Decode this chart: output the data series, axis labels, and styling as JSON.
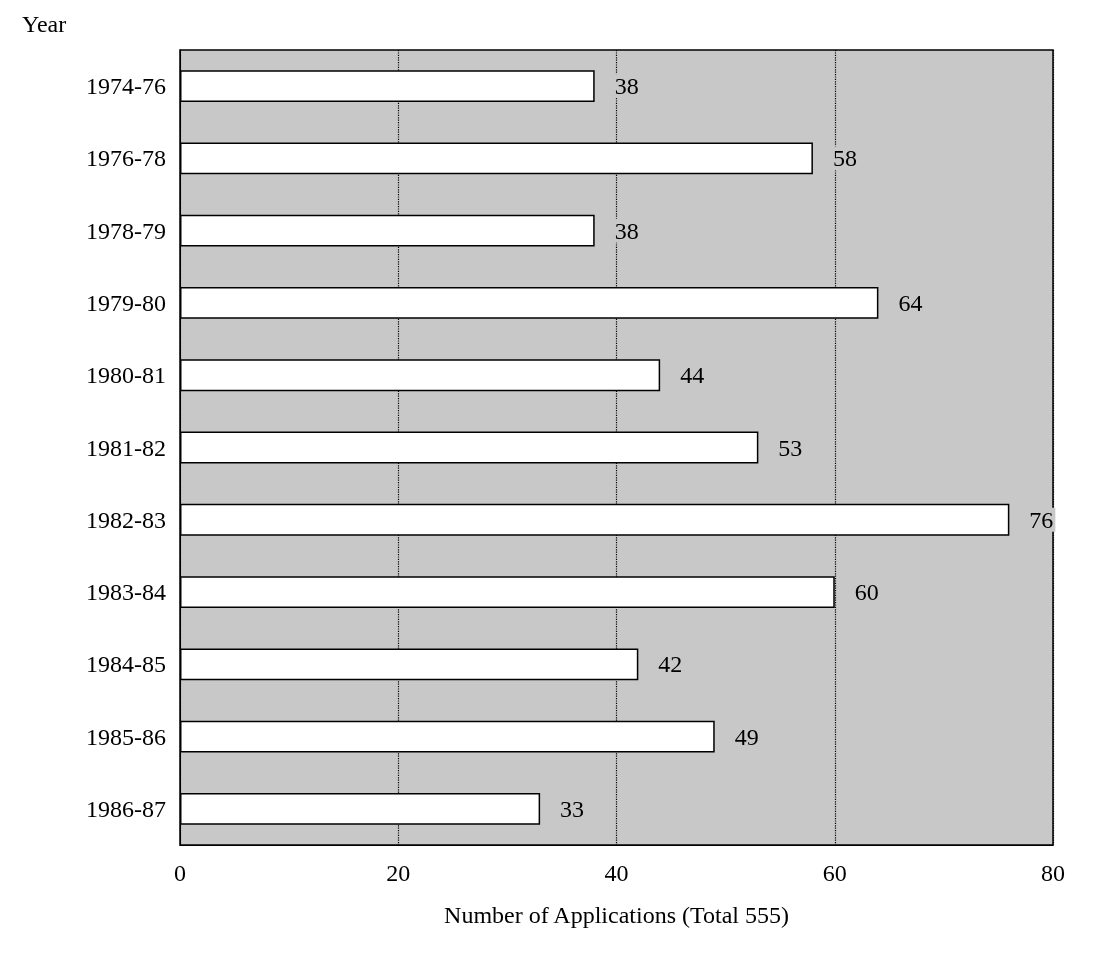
{
  "chart_data": {
    "type": "bar",
    "orientation": "horizontal",
    "ylabel": "Year",
    "xlabel": "Number of Applications (Total 555)",
    "categories": [
      "1974-76",
      "1976-78",
      "1978-79",
      "1979-80",
      "1980-81",
      "1981-82",
      "1982-83",
      "1983-84",
      "1984-85",
      "1985-86",
      "1986-87"
    ],
    "values": [
      38,
      58,
      38,
      64,
      44,
      53,
      76,
      60,
      42,
      49,
      33
    ],
    "color": "#ffffff",
    "xlim": [
      0,
      80
    ],
    "xticks": [
      0,
      20,
      40,
      60,
      80
    ],
    "grid": "x",
    "line_style": "dotted",
    "data_labels": true
  }
}
